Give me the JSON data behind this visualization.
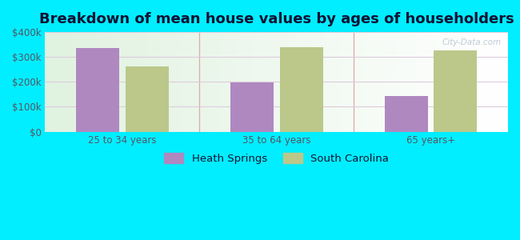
{
  "title": "Breakdown of mean house values by ages of householders",
  "categories": [
    "25 to 34 years",
    "35 to 64 years",
    "65 years+"
  ],
  "heath_springs": [
    335000,
    197000,
    143000
  ],
  "south_carolina": [
    263000,
    340000,
    325000
  ],
  "heath_springs_color": "#b088c0",
  "south_carolina_color": "#bbc88a",
  "ylim": [
    0,
    400000
  ],
  "yticks": [
    0,
    100000,
    200000,
    300000,
    400000
  ],
  "ytick_labels": [
    "$0",
    "$100k",
    "$200k",
    "$300k",
    "$400k"
  ],
  "bg_color": "#00eeff",
  "bar_width": 0.28,
  "legend_heath": "Heath Springs",
  "legend_sc": "South Carolina",
  "title_fontsize": 13,
  "tick_fontsize": 8.5,
  "legend_fontsize": 9.5,
  "separator_color": "#ddaaaa",
  "grid_color": "#ddccdd",
  "axis_label_color": "#555566",
  "title_color": "#111133"
}
